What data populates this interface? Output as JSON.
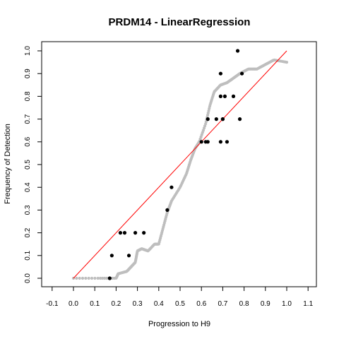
{
  "chart_data": {
    "type": "scatter",
    "title": "PRDM14 - LinearRegression",
    "xlabel": "Progression to H9",
    "ylabel": "Frequency of Detection",
    "xlim": [
      -0.1,
      1.1
    ],
    "ylim": [
      0.0,
      1.0
    ],
    "xticks": [
      "-0.1",
      "0.0",
      "0.1",
      "0.2",
      "0.3",
      "0.4",
      "0.5",
      "0.6",
      "0.7",
      "0.8",
      "0.9",
      "1.0",
      "1.1"
    ],
    "yticks": [
      "0.0",
      "0.1",
      "0.2",
      "0.3",
      "0.4",
      "0.5",
      "0.6",
      "0.7",
      "0.8",
      "0.9",
      "1.0"
    ],
    "grid": false,
    "reference_line": {
      "x": [
        0.0,
        1.0
      ],
      "y": [
        0.0,
        1.0
      ],
      "color": "#ff0000"
    },
    "series": [
      {
        "color": "#bebebe",
        "marker": "circle",
        "curve_anchors": [
          [
            0.0,
            0.0
          ],
          [
            0.12,
            0.0
          ],
          [
            0.2,
            0.0
          ],
          [
            0.21,
            0.02
          ],
          [
            0.25,
            0.03
          ],
          [
            0.27,
            0.05
          ],
          [
            0.29,
            0.07
          ],
          [
            0.3,
            0.12
          ],
          [
            0.32,
            0.13
          ],
          [
            0.35,
            0.12
          ],
          [
            0.38,
            0.15
          ],
          [
            0.4,
            0.15
          ],
          [
            0.42,
            0.22
          ],
          [
            0.44,
            0.29
          ],
          [
            0.46,
            0.34
          ],
          [
            0.5,
            0.4
          ],
          [
            0.53,
            0.46
          ],
          [
            0.55,
            0.52
          ],
          [
            0.57,
            0.57
          ],
          [
            0.59,
            0.6
          ],
          [
            0.62,
            0.68
          ],
          [
            0.64,
            0.76
          ],
          [
            0.66,
            0.82
          ],
          [
            0.69,
            0.85
          ],
          [
            0.72,
            0.86
          ],
          [
            0.75,
            0.88
          ],
          [
            0.78,
            0.9
          ],
          [
            0.82,
            0.92
          ],
          [
            0.86,
            0.92
          ],
          [
            0.9,
            0.94
          ],
          [
            0.94,
            0.96
          ],
          [
            1.0,
            0.95
          ]
        ],
        "n_points": 260
      },
      {
        "color": "#000000",
        "marker": "circle",
        "points": [
          [
            0.17,
            0.0
          ],
          [
            0.18,
            0.1
          ],
          [
            0.26,
            0.1
          ],
          [
            0.22,
            0.2
          ],
          [
            0.24,
            0.2
          ],
          [
            0.29,
            0.2
          ],
          [
            0.33,
            0.2
          ],
          [
            0.44,
            0.3
          ],
          [
            0.46,
            0.4
          ],
          [
            0.6,
            0.6
          ],
          [
            0.62,
            0.6
          ],
          [
            0.63,
            0.6
          ],
          [
            0.69,
            0.6
          ],
          [
            0.72,
            0.6
          ],
          [
            0.63,
            0.7
          ],
          [
            0.67,
            0.7
          ],
          [
            0.7,
            0.7
          ],
          [
            0.7,
            0.7
          ],
          [
            0.78,
            0.7
          ],
          [
            0.69,
            0.8
          ],
          [
            0.71,
            0.8
          ],
          [
            0.75,
            0.8
          ],
          [
            0.69,
            0.9
          ],
          [
            0.79,
            0.9
          ],
          [
            0.77,
            1.0
          ]
        ]
      }
    ]
  }
}
